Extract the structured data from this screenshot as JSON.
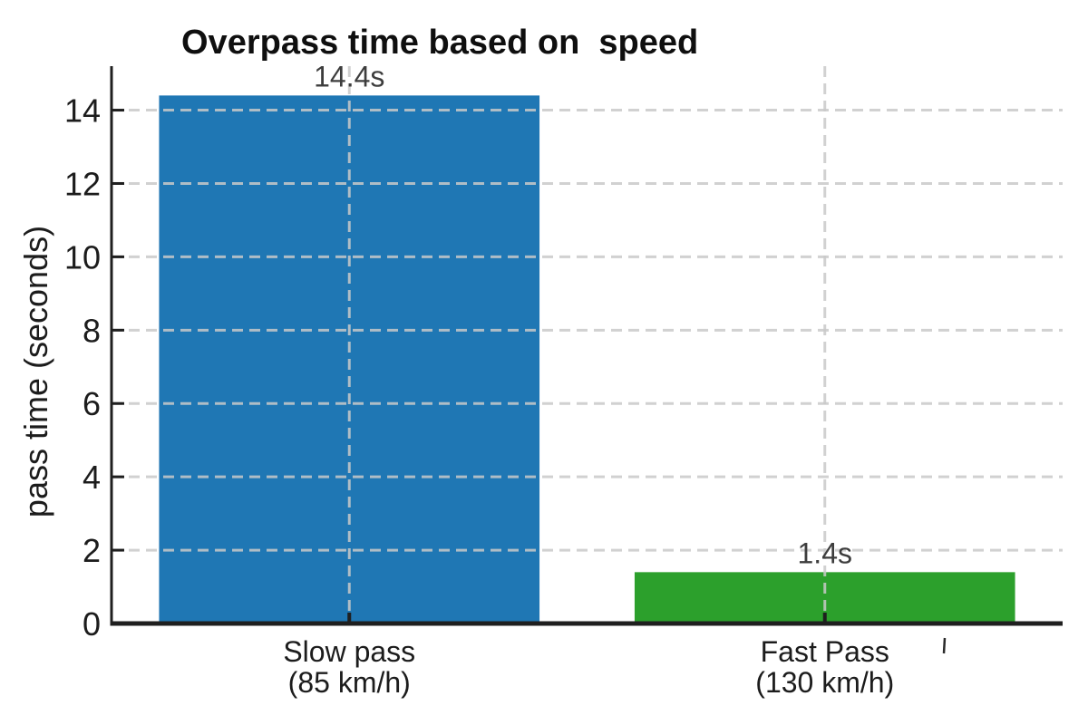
{
  "chart_data": {
    "type": "bar",
    "title": "Overpass time based on  speed",
    "ylabel": "pass time (seconds)",
    "xlabel": "",
    "categories": [
      "Slow pass (85 km/h)",
      "Fast Pass (130 km/h)"
    ],
    "category_lines": [
      [
        "Slow pass",
        "(85 km/h)"
      ],
      [
        "Fast Pass",
        "(130 km/h)"
      ]
    ],
    "values": [
      14.4,
      1.4
    ],
    "bar_value_labels": [
      "14.4s",
      "1.4s"
    ],
    "series_colors": [
      "#1f77b4",
      "#2ca02c"
    ],
    "yticks": [
      0,
      2,
      4,
      6,
      8,
      10,
      12,
      14
    ],
    "ylim": [
      0,
      15.2
    ],
    "bar_width_fraction": 0.8,
    "grid": "dashed",
    "grid_color": "#c9c9c9",
    "axis_color": "#1f1f1f",
    "tick_label_color": "#1c1c1c",
    "value_label_color": "#3d3d3d",
    "legend": "none"
  }
}
